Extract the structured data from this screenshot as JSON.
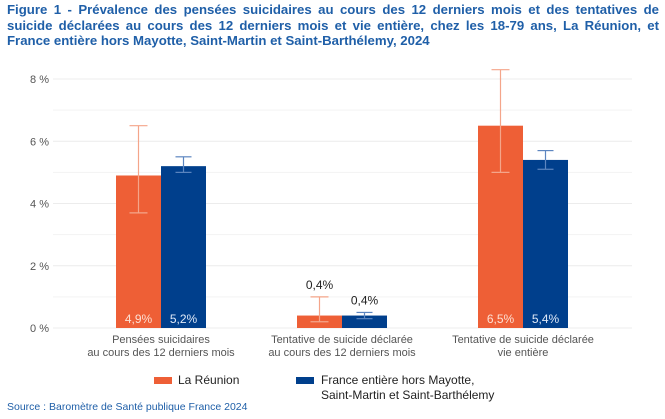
{
  "title": "Figure 1 - Prévalence des pensées suicidaires au cours des 12 derniers mois et des tentatives de suicide déclarées au cours des 12 derniers mois et vie entière, chez les 18-79 ans, La Réunion, et France entière hors Mayotte, Saint-Martin et Saint-Barthélemy, 2024",
  "source": "Source : Baromètre de Santé publique France 2024",
  "colors": {
    "reunion": "#ee5f36",
    "reunion_error": "#f4a58a",
    "france": "#003f8c",
    "france_error": "#5d86c0",
    "grid": "#ececec",
    "axis_text": "#555555",
    "title": "#1f5fa8"
  },
  "chart_data": {
    "type": "bar",
    "title": "Figure 1 - Prévalence des pensées suicidaires au cours des 12 derniers mois et des tentatives de suicide déclarées au cours des 12 derniers mois et vie entière, chez les 18-79 ans, La Réunion, et France entière hors Mayotte, Saint-Martin et Saint-Barthélemy, 2024",
    "xlabel": "",
    "ylabel": "",
    "ylim": [
      0,
      8
    ],
    "yticks": [
      0,
      2,
      4,
      6,
      8
    ],
    "ytick_labels": [
      "0 %",
      "2 %",
      "4 %",
      "6 %",
      "8 %"
    ],
    "minor_grid": [
      1,
      3,
      5,
      7
    ],
    "grid": true,
    "legend_position": "bottom",
    "categories": [
      [
        "Pensées suicidaires",
        "au cours des 12 derniers mois"
      ],
      [
        "Tentative de suicide déclarée",
        "au cours des 12 derniers mois"
      ],
      [
        "Tentative de suicide déclarée",
        "vie entière"
      ]
    ],
    "series": [
      {
        "name": "La Réunion",
        "values": [
          4.9,
          0.4,
          6.5
        ],
        "labels": [
          "4,9%",
          "0,4%",
          "6,5%"
        ],
        "ci_low": [
          3.7,
          0.2,
          5.0
        ],
        "ci_high": [
          6.5,
          1.0,
          8.3
        ]
      },
      {
        "name": "France entière hors Mayotte, Saint-Martin et Saint-Barthélemy",
        "values": [
          5.2,
          0.4,
          5.4
        ],
        "labels": [
          "5,2%",
          "0,4%",
          "5,4%"
        ],
        "ci_low": [
          5.0,
          0.3,
          5.1
        ],
        "ci_high": [
          5.5,
          0.5,
          5.7
        ]
      }
    ]
  },
  "legend": {
    "items": [
      {
        "label_lines": [
          "La Réunion"
        ]
      },
      {
        "label_lines": [
          "France entière hors Mayotte,",
          "Saint-Martin et Saint-Barthélemy"
        ]
      }
    ]
  }
}
